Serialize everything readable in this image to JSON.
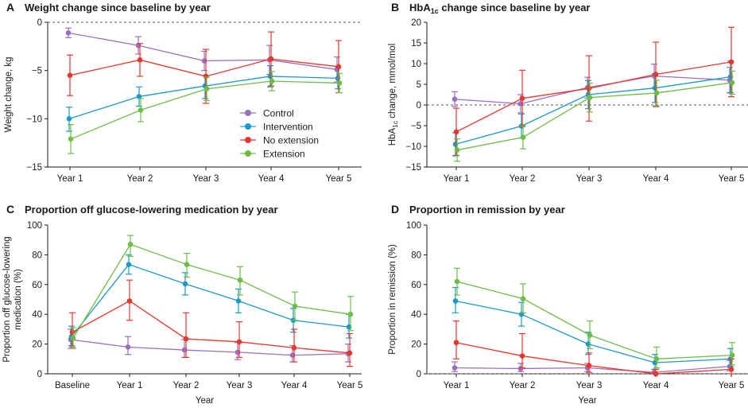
{
  "colors": {
    "control": "#9b6fc0",
    "intervention": "#1a9ac9",
    "no_extension": "#e8362d",
    "extension": "#6cbd45",
    "axis": "#1a1a1a",
    "zero_line": "#555555"
  },
  "legend": {
    "items": [
      {
        "key": "control",
        "label": "Control"
      },
      {
        "key": "intervention",
        "label": "Intervention"
      },
      {
        "key": "no_extension",
        "label": "No extension"
      },
      {
        "key": "extension",
        "label": "Extension"
      }
    ],
    "placement": "panel A, center-right"
  },
  "xlabel": "Year",
  "chart_data": [
    {
      "panel": "A",
      "type": "line",
      "title": "Weight change since baseline by year",
      "ylabel": "Weight change, kg",
      "categories": [
        "Year 1",
        "Year 2",
        "Year 3",
        "Year 4",
        "Year 5"
      ],
      "ylim": [
        -15,
        0
      ],
      "yticks": [
        "−15",
        "−10",
        "−5",
        "0"
      ],
      "ytick_values": [
        -15,
        -10,
        -5,
        0
      ],
      "zero_line": true,
      "series": [
        {
          "key": "control",
          "values": [
            -1.1,
            -2.4,
            -4.0,
            -3.9,
            -4.9
          ],
          "lower": [
            -1.6,
            -3.3,
            -5.0,
            -5.4,
            -6.2
          ],
          "upper": [
            -0.6,
            -1.5,
            -3.0,
            -2.4,
            -3.6
          ]
        },
        {
          "key": "intervention",
          "values": [
            -10.0,
            -7.7,
            -6.6,
            -5.6,
            -5.8
          ],
          "lower": [
            -11.3,
            -8.7,
            -7.9,
            -6.7,
            -6.9
          ],
          "upper": [
            -8.8,
            -6.7,
            -5.5,
            -4.5,
            -4.7
          ]
        },
        {
          "key": "no_extension",
          "values": [
            -5.5,
            -3.9,
            -5.6,
            -3.8,
            -4.6
          ],
          "lower": [
            -7.6,
            -5.6,
            -8.4,
            -6.6,
            -7.3
          ],
          "upper": [
            -3.4,
            -2.2,
            -2.8,
            -1.0,
            -1.9
          ]
        },
        {
          "key": "extension",
          "values": [
            -12.1,
            -9.1,
            -6.9,
            -6.1,
            -6.3
          ],
          "lower": [
            -13.6,
            -10.3,
            -8.1,
            -7.1,
            -7.3
          ],
          "upper": [
            -10.6,
            -7.9,
            -5.7,
            -5.1,
            -5.3
          ]
        }
      ]
    },
    {
      "panel": "B",
      "type": "line",
      "title": "HbA1c change since baseline by year",
      "title_main": "HbA",
      "title_sub": "1c",
      "title_rest": " change since baseline by year",
      "ylabel": "HbA1c change, mmol/mol",
      "ylabel_main": "HbA",
      "ylabel_sub": "1c",
      "ylabel_rest": " change, mmol/mol",
      "categories": [
        "Year 1",
        "Year 2",
        "Year 3",
        "Year 4",
        "Year 5"
      ],
      "ylim": [
        -15,
        20
      ],
      "yticks": [
        "−15",
        "−10",
        "−5",
        "0",
        "5",
        "10",
        "15",
        "20"
      ],
      "ytick_values": [
        -15,
        -10,
        -5,
        0,
        5,
        10,
        15,
        20
      ],
      "zero_line": true,
      "series": [
        {
          "key": "control",
          "values": [
            1.4,
            0.3,
            4.2,
            7.0,
            6.0
          ],
          "lower": [
            -0.4,
            -1.9,
            1.7,
            4.1,
            2.9
          ],
          "upper": [
            3.2,
            2.5,
            6.7,
            9.9,
            9.1
          ]
        },
        {
          "key": "intervention",
          "values": [
            -9.5,
            -5.1,
            2.5,
            4.1,
            6.8
          ],
          "lower": [
            -12.3,
            -8.0,
            -0.9,
            0.6,
            3.0
          ],
          "upper": [
            -6.7,
            -2.2,
            5.9,
            7.6,
            10.6
          ]
        },
        {
          "key": "no_extension",
          "values": [
            -6.5,
            1.6,
            4.0,
            7.4,
            10.4
          ],
          "lower": [
            -12.2,
            -5.2,
            -3.9,
            -0.4,
            2.0
          ],
          "upper": [
            -0.8,
            8.4,
            11.9,
            15.2,
            18.8
          ]
        },
        {
          "key": "extension",
          "values": [
            -10.9,
            -7.8,
            1.8,
            2.9,
            5.4
          ],
          "lower": [
            -13.6,
            -10.6,
            -1.7,
            -0.2,
            2.6
          ],
          "upper": [
            -8.2,
            -5.0,
            5.3,
            6.0,
            8.2
          ]
        }
      ]
    },
    {
      "panel": "C",
      "type": "line",
      "title": "Proportion off glucose-lowering medication by year",
      "ylabel": "Proportion off glucose-lowering medication (%)",
      "ylabel_lines": [
        "Proportion off glucose-lowering",
        "medication (%)"
      ],
      "categories": [
        "Baseline",
        "Year 1",
        "Year 2",
        "Year 3",
        "Year 4",
        "Year 5"
      ],
      "ylim": [
        0,
        100
      ],
      "yticks": [
        "0",
        "20",
        "40",
        "60",
        "80",
        "100"
      ],
      "ytick_values": [
        0,
        20,
        40,
        60,
        80,
        100
      ],
      "zero_line": false,
      "series": [
        {
          "key": "control",
          "values": [
            23,
            18,
            16,
            14.5,
            12.5,
            13.5
          ],
          "lower": [
            17,
            13,
            11,
            9.5,
            8,
            8
          ],
          "upper": [
            30,
            25,
            23,
            21,
            19,
            20
          ]
        },
        {
          "key": "intervention",
          "values": [
            25,
            73.5,
            60.5,
            49,
            36,
            31.5
          ],
          "lower": [
            19,
            67,
            53,
            41,
            28,
            24
          ],
          "upper": [
            32,
            80,
            68,
            57,
            44,
            40
          ]
        },
        {
          "key": "no_extension",
          "values": [
            28,
            49,
            23.5,
            21.5,
            17.5,
            14
          ],
          "lower": [
            18,
            36,
            11,
            11,
            8,
            5
          ],
          "upper": [
            41,
            63,
            41,
            35,
            30,
            27
          ]
        },
        {
          "key": "extension",
          "values": [
            24,
            87,
            73.5,
            63,
            45.5,
            40
          ],
          "lower": [
            17,
            79,
            65,
            53,
            36,
            29
          ],
          "upper": [
            31,
            93,
            81,
            72,
            55,
            52
          ]
        }
      ]
    },
    {
      "panel": "D",
      "type": "line",
      "title": "Proportion in remission by year",
      "ylabel": "Proportion in remission (%)",
      "categories": [
        "Year 1",
        "Year 2",
        "Year 3",
        "Year 4",
        "Year 5"
      ],
      "ylim": [
        0,
        100
      ],
      "yticks": [
        "0",
        "20",
        "40",
        "60",
        "80",
        "100"
      ],
      "ytick_values": [
        0,
        20,
        40,
        60,
        80,
        100
      ],
      "zero_line": true,
      "series": [
        {
          "key": "control",
          "values": [
            4,
            3.5,
            4,
            1,
            5
          ],
          "lower": [
            1.5,
            1.5,
            1.5,
            0,
            2
          ],
          "upper": [
            8,
            7,
            7,
            3,
            9
          ]
        },
        {
          "key": "intervention",
          "values": [
            49,
            40,
            20,
            7.5,
            10
          ],
          "lower": [
            41,
            32,
            13,
            3,
            5
          ],
          "upper": [
            58,
            48,
            28,
            13,
            17
          ]
        },
        {
          "key": "no_extension",
          "values": [
            21,
            12,
            5.5,
            0,
            3
          ],
          "lower": [
            10,
            4,
            1,
            0,
            0
          ],
          "upper": [
            35.5,
            27,
            14,
            3,
            10
          ]
        },
        {
          "key": "extension",
          "values": [
            62,
            50.5,
            26,
            10,
            12.5
          ],
          "lower": [
            53,
            41,
            17,
            4,
            6
          ],
          "upper": [
            71,
            60.5,
            35.5,
            18,
            21
          ]
        }
      ]
    }
  ]
}
